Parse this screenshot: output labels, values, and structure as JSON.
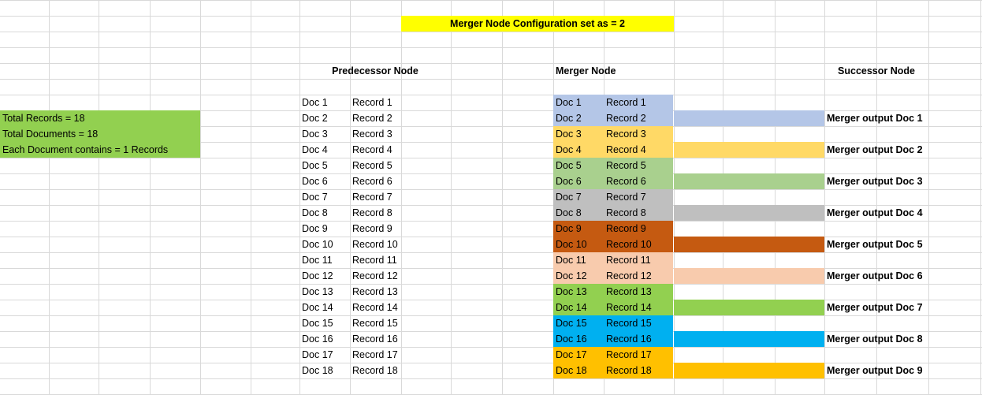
{
  "title_banner": {
    "text": "Merger Node Configuration set as = 2",
    "color": "#ffff00"
  },
  "headers": {
    "predecessor": "Predecessor Node",
    "merger": "Merger Node",
    "successor": "Successor Node"
  },
  "summary": {
    "color": "#92d050",
    "lines": [
      "Total Records = 18",
      "Total Documents = 18",
      "Each Document contains = 1 Records"
    ]
  },
  "rows": [
    {
      "doc": "Doc 1",
      "record": "Record 1"
    },
    {
      "doc": "Doc 2",
      "record": "Record 2"
    },
    {
      "doc": "Doc 3",
      "record": "Record 3"
    },
    {
      "doc": "Doc 4",
      "record": "Record 4"
    },
    {
      "doc": "Doc 5",
      "record": "Record 5"
    },
    {
      "doc": "Doc 6",
      "record": "Record 6"
    },
    {
      "doc": "Doc 7",
      "record": "Record 7"
    },
    {
      "doc": "Doc 8",
      "record": "Record 8"
    },
    {
      "doc": "Doc 9",
      "record": "Record 9"
    },
    {
      "doc": "Doc 10",
      "record": "Record 10"
    },
    {
      "doc": "Doc 11",
      "record": "Record 11"
    },
    {
      "doc": "Doc 12",
      "record": "Record 12"
    },
    {
      "doc": "Doc 13",
      "record": "Record 13"
    },
    {
      "doc": "Doc 14",
      "record": "Record 14"
    },
    {
      "doc": "Doc 15",
      "record": "Record 15"
    },
    {
      "doc": "Doc 16",
      "record": "Record 16"
    },
    {
      "doc": "Doc 17",
      "record": "Record 17"
    },
    {
      "doc": "Doc 18",
      "record": "Record 18"
    }
  ],
  "merger_groups": [
    {
      "color": "#b4c6e7",
      "output": "Merger output Doc 1"
    },
    {
      "color": "#ffd966",
      "output": "Merger output Doc 2"
    },
    {
      "color": "#a9d08e",
      "output": "Merger output Doc 3"
    },
    {
      "color": "#bfbfbf",
      "output": "Merger output Doc 4"
    },
    {
      "color": "#c55a11",
      "output": "Merger output Doc 5"
    },
    {
      "color": "#f8cbad",
      "output": "Merger output Doc 6"
    },
    {
      "color": "#92d050",
      "output": "Merger output Doc 7"
    },
    {
      "color": "#00b0f0",
      "output": "Merger output Doc 8"
    },
    {
      "color": "#ffc000",
      "output": "Merger output Doc 9"
    }
  ],
  "gridline_color": "#d9d9d9"
}
